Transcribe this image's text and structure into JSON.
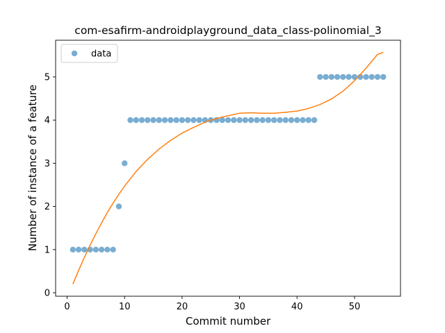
{
  "chart_data": {
    "type": "scatter",
    "title": "com-esafirm-androidplayground_data_class-polinomial_3",
    "xlabel": "Commit number",
    "ylabel": "Number of instance of a feature",
    "xlim": [
      -2,
      58
    ],
    "ylim": [
      -0.08,
      5.85
    ],
    "xticks": [
      0,
      10,
      20,
      30,
      40,
      50
    ],
    "yticks": [
      0,
      1,
      2,
      3,
      4,
      5
    ],
    "grid": false,
    "legend_position": "top-left",
    "series": [
      {
        "name": "data",
        "kind": "scatter",
        "color": "#1f77b4",
        "x": [
          1,
          2,
          3,
          4,
          5,
          6,
          7,
          8,
          9,
          10,
          11,
          12,
          13,
          14,
          15,
          16,
          17,
          18,
          19,
          20,
          21,
          22,
          23,
          24,
          25,
          26,
          27,
          28,
          29,
          30,
          31,
          32,
          33,
          34,
          35,
          36,
          37,
          38,
          39,
          40,
          41,
          42,
          43,
          44,
          45,
          46,
          47,
          48,
          49,
          50,
          51,
          52,
          53,
          54,
          55
        ],
        "y": [
          1,
          1,
          1,
          1,
          1,
          1,
          1,
          1,
          2,
          3,
          4,
          4,
          4,
          4,
          4,
          4,
          4,
          4,
          4,
          4,
          4,
          4,
          4,
          4,
          4,
          4,
          4,
          4,
          4,
          4,
          4,
          4,
          4,
          4,
          4,
          4,
          4,
          4,
          4,
          4,
          4,
          4,
          4,
          5,
          5,
          5,
          5,
          5,
          5,
          5,
          5,
          5,
          5,
          5,
          5
        ]
      },
      {
        "kind": "line",
        "color": "#ff7f0e",
        "x": [
          1,
          2,
          3,
          4,
          5,
          6,
          7,
          8,
          9,
          10,
          12,
          14,
          16,
          18,
          20,
          22,
          24,
          26,
          28,
          30,
          32,
          34,
          36,
          38,
          40,
          42,
          44,
          46,
          48,
          50,
          52,
          54,
          55
        ],
        "y": [
          0.2,
          0.52,
          0.82,
          1.1,
          1.37,
          1.62,
          1.86,
          2.08,
          2.28,
          2.47,
          2.81,
          3.09,
          3.33,
          3.53,
          3.7,
          3.83,
          3.95,
          4.04,
          4.1,
          4.16,
          4.17,
          4.16,
          4.16,
          4.18,
          4.21,
          4.27,
          4.36,
          4.49,
          4.67,
          4.91,
          5.2,
          5.52,
          5.57
        ]
      }
    ]
  }
}
